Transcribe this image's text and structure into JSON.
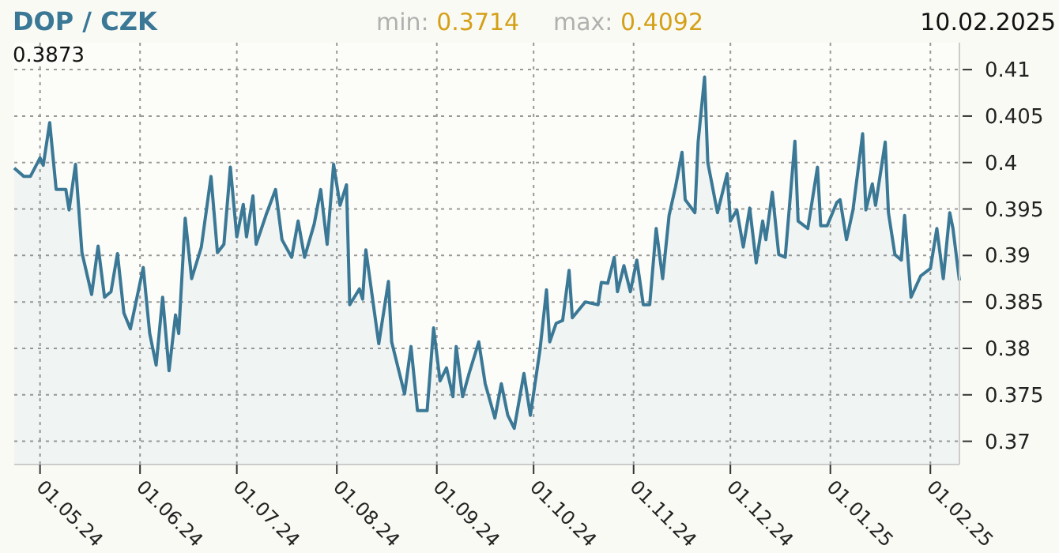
{
  "chart_data": {
    "type": "area",
    "title": "DOP / CZK",
    "annotations": [
      "min: 0.3714",
      "max: 0.4092",
      "10.02.2025",
      "0.3873"
    ],
    "x": [
      "2024-04-23",
      "2024-04-26",
      "2024-04-28",
      "2024-05-01",
      "2024-05-02",
      "2024-05-04",
      "2024-05-06",
      "2024-05-09",
      "2024-05-10",
      "2024-05-12",
      "2024-05-14",
      "2024-05-17",
      "2024-05-19",
      "2024-05-21",
      "2024-05-23",
      "2024-05-25",
      "2024-05-27",
      "2024-05-29",
      "2024-06-02",
      "2024-06-04",
      "2024-06-06",
      "2024-06-08",
      "2024-06-10",
      "2024-06-12",
      "2024-06-13",
      "2024-06-15",
      "2024-06-17",
      "2024-06-20",
      "2024-06-23",
      "2024-06-25",
      "2024-06-27",
      "2024-06-29",
      "2024-07-01",
      "2024-07-03",
      "2024-07-04",
      "2024-07-06",
      "2024-07-07",
      "2024-07-10",
      "2024-07-13",
      "2024-07-15",
      "2024-07-18",
      "2024-07-20",
      "2024-07-22",
      "2024-07-25",
      "2024-07-27",
      "2024-07-29",
      "2024-07-31",
      "2024-08-02",
      "2024-08-04",
      "2024-08-05",
      "2024-08-08",
      "2024-08-09",
      "2024-08-10",
      "2024-08-14",
      "2024-08-17",
      "2024-08-18",
      "2024-08-22",
      "2024-08-24",
      "2024-08-26",
      "2024-08-29",
      "2024-08-31",
      "2024-09-02",
      "2024-09-04",
      "2024-09-06",
      "2024-09-07",
      "2024-09-09",
      "2024-09-11",
      "2024-09-14",
      "2024-09-16",
      "2024-09-19",
      "2024-09-21",
      "2024-09-23",
      "2024-09-25",
      "2024-09-28",
      "2024-09-30",
      "2024-10-03",
      "2024-10-05",
      "2024-10-06",
      "2024-10-08",
      "2024-10-10",
      "2024-10-12",
      "2024-10-13",
      "2024-10-17",
      "2024-10-21",
      "2024-10-22",
      "2024-10-24",
      "2024-10-26",
      "2024-10-27",
      "2024-10-29",
      "2024-10-31",
      "2024-11-02",
      "2024-11-04",
      "2024-11-06",
      "2024-11-08",
      "2024-11-10",
      "2024-11-12",
      "2024-11-14",
      "2024-11-16",
      "2024-11-17",
      "2024-11-20",
      "2024-11-21",
      "2024-11-23",
      "2024-11-24",
      "2024-11-27",
      "2024-11-30",
      "2024-12-01",
      "2024-12-03",
      "2024-12-05",
      "2024-12-07",
      "2024-12-09",
      "2024-12-11",
      "2024-12-12",
      "2024-12-14",
      "2024-12-16",
      "2024-12-18",
      "2024-12-21",
      "2024-12-22",
      "2024-12-25",
      "2024-12-28",
      "2024-12-29",
      "2024-12-31",
      "2025-01-03",
      "2025-01-04",
      "2025-01-06",
      "2025-01-08",
      "2025-01-11",
      "2025-01-12",
      "2025-01-14",
      "2025-01-15",
      "2025-01-18",
      "2025-01-19",
      "2025-01-21",
      "2025-01-23",
      "2025-01-24",
      "2025-01-26",
      "2025-01-29",
      "2025-02-01",
      "2025-02-03",
      "2025-02-05",
      "2025-02-07",
      "2025-02-08",
      "2025-02-10"
    ],
    "series": [
      {
        "color": "#3a7896",
        "values": [
          0.3994,
          0.3985,
          0.3985,
          0.4005,
          0.3997,
          0.4043,
          0.3971,
          0.3971,
          0.3949,
          0.3998,
          0.3903,
          0.3858,
          0.391,
          0.3855,
          0.3861,
          0.3902,
          0.3838,
          0.3821,
          0.3887,
          0.3816,
          0.3782,
          0.3855,
          0.3776,
          0.3836,
          0.3816,
          0.394,
          0.3875,
          0.3909,
          0.3985,
          0.3903,
          0.3912,
          0.3995,
          0.392,
          0.3955,
          0.392,
          0.3964,
          0.3912,
          0.3943,
          0.3971,
          0.3917,
          0.3898,
          0.3937,
          0.3898,
          0.3934,
          0.3971,
          0.3912,
          0.3998,
          0.3954,
          0.3976,
          0.3847,
          0.3864,
          0.3853,
          0.3906,
          0.3805,
          0.3872,
          0.3807,
          0.3751,
          0.3802,
          0.3733,
          0.3733,
          0.3822,
          0.3765,
          0.3779,
          0.3748,
          0.3802,
          0.3748,
          0.3773,
          0.3807,
          0.3762,
          0.3725,
          0.3762,
          0.3728,
          0.3714,
          0.3773,
          0.3728,
          0.3799,
          0.3863,
          0.3807,
          0.3827,
          0.383,
          0.3884,
          0.3833,
          0.385,
          0.3847,
          0.3871,
          0.387,
          0.3898,
          0.3861,
          0.3889,
          0.3861,
          0.3895,
          0.3847,
          0.3847,
          0.3929,
          0.3875,
          0.3943,
          0.3974,
          0.4011,
          0.396,
          0.3946,
          0.4022,
          0.4092,
          0.4,
          0.3946,
          0.3988,
          0.3937,
          0.3949,
          0.3909,
          0.3951,
          0.3892,
          0.3937,
          0.3917,
          0.3968,
          0.3901,
          0.3898,
          0.4023,
          0.3937,
          0.3929,
          0.3995,
          0.3932,
          0.3932,
          0.3957,
          0.396,
          0.3917,
          0.3949,
          0.4031,
          0.3949,
          0.3977,
          0.3954,
          0.4022,
          0.3946,
          0.3901,
          0.3895,
          0.3943,
          0.3855,
          0.3878,
          0.3886,
          0.3929,
          0.3875,
          0.3946,
          0.3929,
          0.3873
        ]
      }
    ],
    "xlim": [
      "2024-04-23",
      "2025-02-10"
    ],
    "xticks": [
      {
        "value": "2024-05-01",
        "label": "01.05.24"
      },
      {
        "value": "2024-06-01",
        "label": "01.06.24"
      },
      {
        "value": "2024-07-01",
        "label": "01.07.24"
      },
      {
        "value": "2024-08-01",
        "label": "01.08.24"
      },
      {
        "value": "2024-09-01",
        "label": "01.09.24"
      },
      {
        "value": "2024-10-01",
        "label": "01.10.24"
      },
      {
        "value": "2024-11-01",
        "label": "01.11.24"
      },
      {
        "value": "2024-12-01",
        "label": "01.12.24"
      },
      {
        "value": "2025-01-01",
        "label": "01.01.25"
      },
      {
        "value": "2025-02-01",
        "label": "01.02.25"
      }
    ],
    "ylim": [
      0.3675,
      0.4129
    ],
    "yticks": [
      0.37,
      0.375,
      0.38,
      0.385,
      0.39,
      0.395,
      0.4,
      0.405,
      0.41
    ],
    "grid": true
  }
}
